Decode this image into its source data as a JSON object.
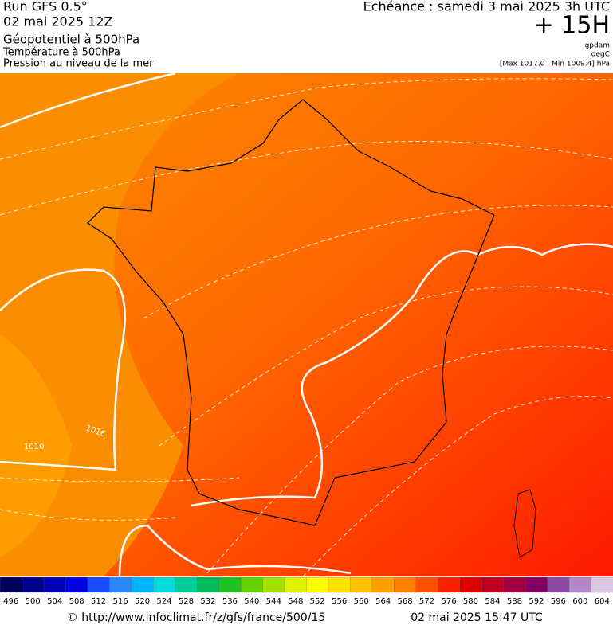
{
  "header": {
    "run": "Run GFS 0.5°",
    "date": "02 mai 2025 12Z",
    "fields": [
      "Géopotentiel à 500hPa",
      "Température à 500hPa",
      "Pression au niveau de la mer"
    ],
    "valid": "Echéance : samedi 3 mai 2025 3h UTC",
    "lead": "+ 15H",
    "units": [
      "gpdam",
      "degC"
    ],
    "pressure_range": "[Max 1017.0 | Min 1009.4] hPa"
  },
  "map": {
    "contour_labels": [
      "1016",
      "1010"
    ]
  },
  "colorbar": {
    "values": [
      496,
      500,
      504,
      508,
      512,
      516,
      520,
      524,
      528,
      532,
      536,
      540,
      544,
      548,
      552,
      556,
      560,
      564,
      568,
      572,
      576,
      580,
      584,
      588,
      592,
      596,
      600,
      604
    ],
    "colors": [
      "#00005a",
      "#00008c",
      "#0000b8",
      "#0000e6",
      "#1a4cff",
      "#2a86ff",
      "#00b4ff",
      "#00dcdc",
      "#00cc9a",
      "#00bb5c",
      "#22c022",
      "#66d000",
      "#a6e000",
      "#e0f000",
      "#ffff00",
      "#ffe000",
      "#ffc000",
      "#ffa000",
      "#ff8000",
      "#ff5000",
      "#ff2000",
      "#e00000",
      "#c00020",
      "#a00040",
      "#840064",
      "#8a4aa6",
      "#b486c6",
      "#dcc6e4"
    ]
  },
  "footer": {
    "url": "© http://www.infoclimat.fr/z/gfs/france/500/15",
    "timestamp": "02 mai 2025 15:47 UTC"
  }
}
